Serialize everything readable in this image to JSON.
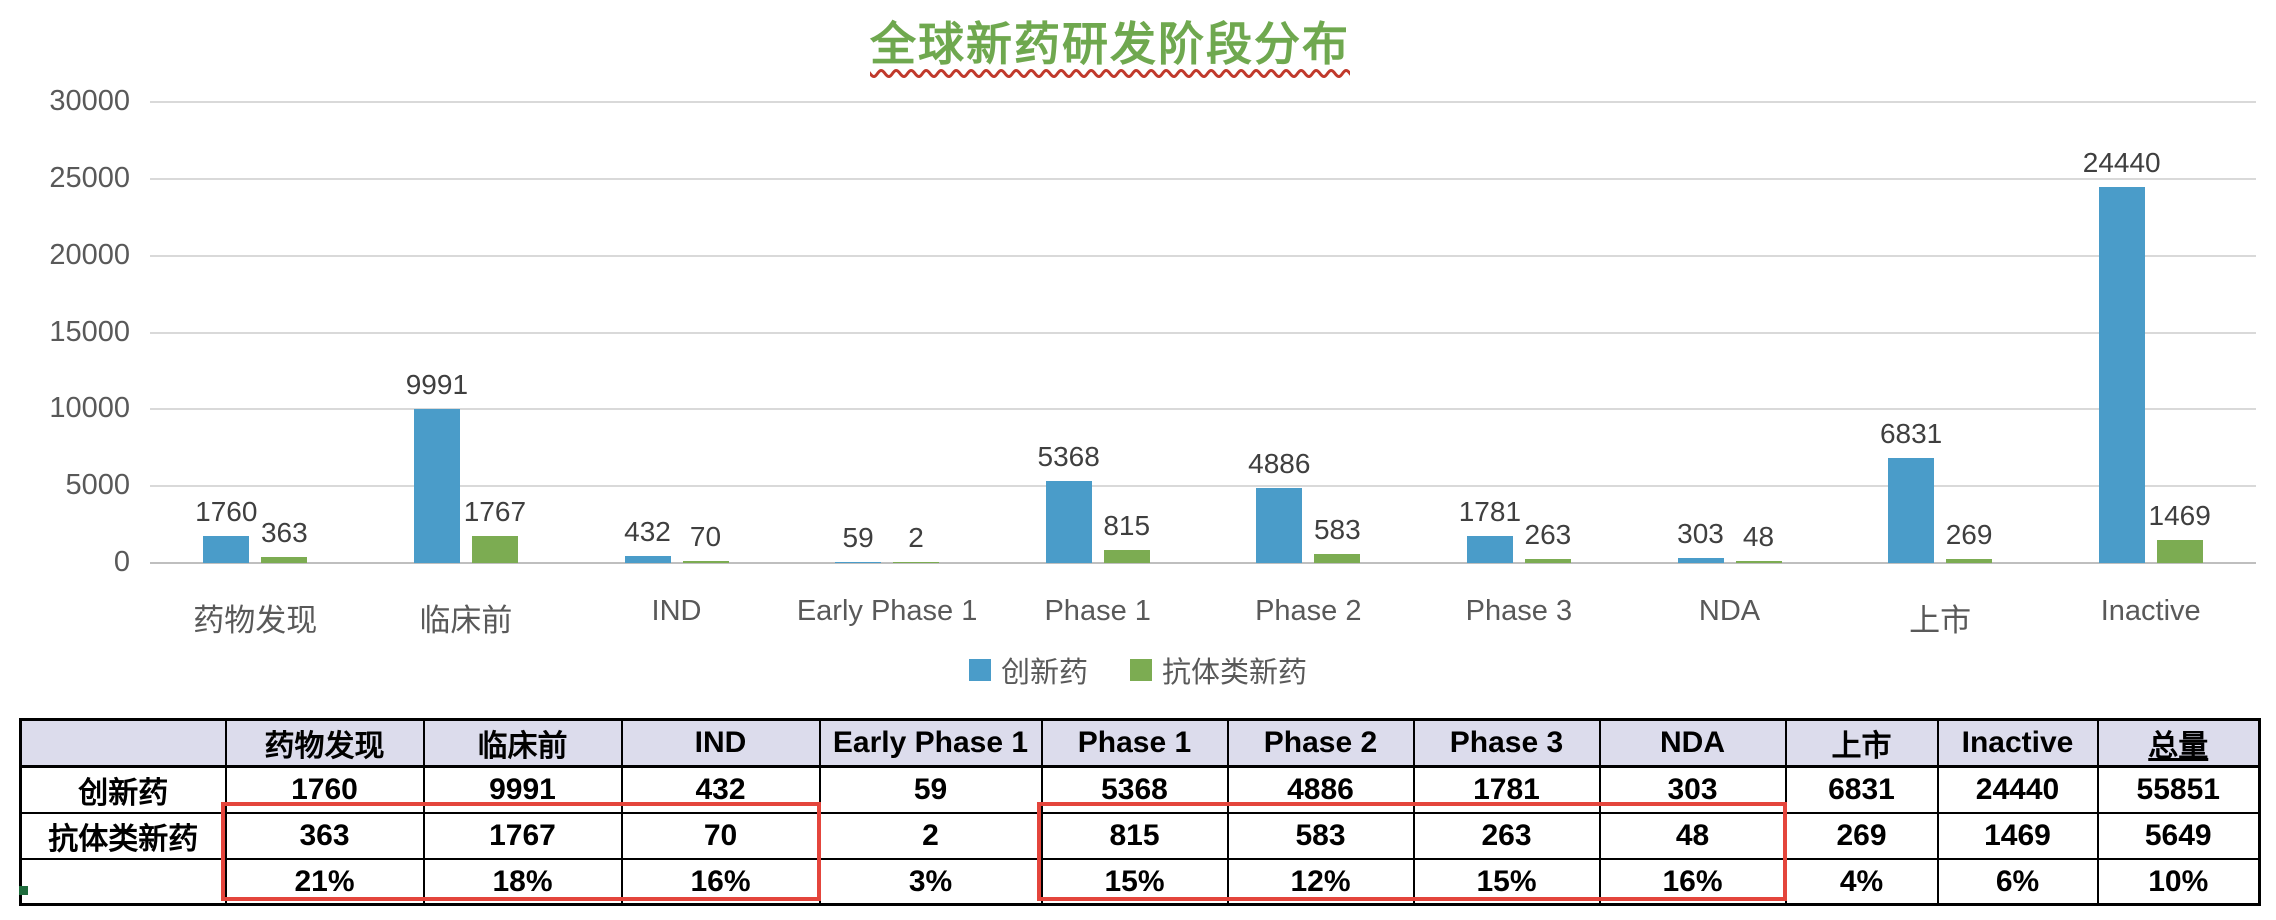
{
  "title": {
    "text": "全球新药研发阶段分布",
    "color": "#6FA84F",
    "underline_color": "#C0392B"
  },
  "legend": {
    "items": [
      {
        "label": "创新药",
        "color": "#4A9CC9"
      },
      {
        "label": "抗体类新药",
        "color": "#7CAC52"
      }
    ]
  },
  "chart_data": {
    "type": "bar",
    "title": "全球新药研发阶段分布",
    "categories": [
      "药物发现",
      "临床前",
      "IND",
      "Early Phase 1",
      "Phase 1",
      "Phase 2",
      "Phase 3",
      "NDA",
      "上市",
      "Inactive"
    ],
    "series": [
      {
        "name": "创新药",
        "color": "#4A9CC9",
        "values": [
          1760,
          9991,
          432,
          59,
          5368,
          4886,
          1781,
          303,
          6831,
          24440
        ]
      },
      {
        "name": "抗体类新药",
        "color": "#7CAC52",
        "values": [
          363,
          1767,
          70,
          2,
          815,
          583,
          263,
          48,
          269,
          1469
        ]
      }
    ],
    "xlabel": "",
    "ylabel": "",
    "ylim": [
      0,
      30000
    ],
    "yticks": [
      0,
      5000,
      10000,
      15000,
      20000,
      25000,
      30000
    ],
    "grid": true,
    "legend_position": "bottom",
    "data_labels": true
  },
  "table": {
    "headers": [
      "",
      "药物发现",
      "临床前",
      "IND",
      "Early Phase 1",
      "Phase 1",
      "Phase 2",
      "Phase 3",
      "NDA",
      "上市",
      "Inactive",
      "总量"
    ],
    "underlined_header": "总量",
    "header_bg": "#DCDCEC",
    "rows": [
      {
        "label": "创新药",
        "values": [
          "1760",
          "9991",
          "432",
          "59",
          "5368",
          "4886",
          "1781",
          "303",
          "6831",
          "24440",
          "55851"
        ]
      },
      {
        "label": "抗体类新药",
        "values": [
          "363",
          "1767",
          "70",
          "2",
          "815",
          "583",
          "263",
          "48",
          "269",
          "1469",
          "5649"
        ]
      },
      {
        "label": "",
        "values": [
          "21%",
          "18%",
          "16%",
          "3%",
          "15%",
          "12%",
          "15%",
          "16%",
          "4%",
          "6%",
          "10%"
        ]
      }
    ],
    "highlight_color": "#E4453C",
    "highlights": [
      {
        "start_col": 1,
        "end_col": 3,
        "rows": "抗体类新药 + percent"
      },
      {
        "start_col": 5,
        "end_col": 8,
        "rows": "抗体类新药 + percent"
      }
    ]
  }
}
